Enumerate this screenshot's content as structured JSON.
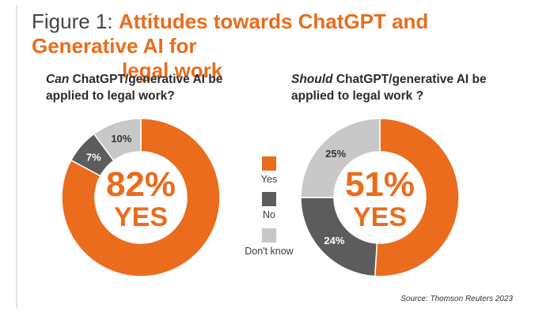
{
  "figure_label": "Figure 1:",
  "title_line1": "Attitudes towards ChatGPT and Generative AI for",
  "title_line2": "legal work",
  "source": "Source: Thomson Reuters 2023",
  "colors": {
    "yes": "#ea6c1c",
    "no": "#5c5c5e",
    "dont_know": "#c8c8c8",
    "title_accent": "#ea6c1c"
  },
  "legend": [
    {
      "label": "Yes",
      "color": "#ea6c1c"
    },
    {
      "label": "No",
      "color": "#5c5c5e"
    },
    {
      "label": "Don't know",
      "color": "#c8c8c8"
    }
  ],
  "chart_data": [
    {
      "type": "pie",
      "style": "donut",
      "title_emphasis": "Can",
      "title_rest": " ChatGPT/generative AI be applied to legal work?",
      "center_value": "82%",
      "center_label": "YES",
      "categories": [
        "Yes",
        "No",
        "Don't know"
      ],
      "values": [
        82,
        7,
        10
      ],
      "data_labels": [
        "",
        "7%",
        "10%"
      ],
      "colors": [
        "#ea6c1c",
        "#5c5c5e",
        "#c8c8c8"
      ]
    },
    {
      "type": "pie",
      "style": "donut",
      "title_emphasis": "Should",
      "title_rest": " ChatGPT/generative AI be applied to legal work ?",
      "center_value": "51%",
      "center_label": "YES",
      "categories": [
        "Yes",
        "No",
        "Don't know"
      ],
      "values": [
        51,
        24,
        25
      ],
      "data_labels": [
        "",
        "24%",
        "25%"
      ],
      "colors": [
        "#ea6c1c",
        "#5c5c5e",
        "#c8c8c8"
      ]
    }
  ]
}
